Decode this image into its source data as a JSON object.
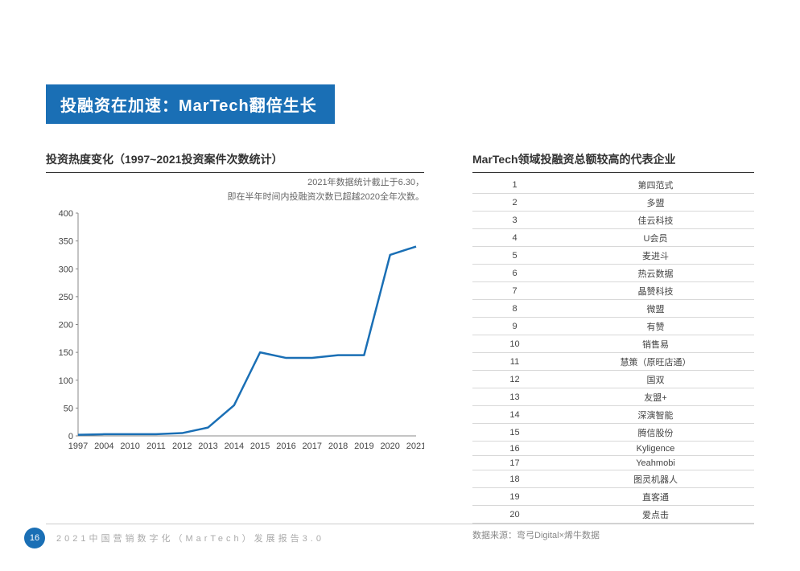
{
  "header": {
    "title": "投融资在加速：MarTech翻倍生长"
  },
  "chart_section": {
    "title": "投资热度变化（1997~2021投资案件次数统计）",
    "note_line1": "2021年数据统计截止于6.30，",
    "note_line2": "即在半年时间内投融资次数已超越2020全年次数。"
  },
  "chart": {
    "type": "line",
    "line_color": "#1a6fb5",
    "line_width": 2.5,
    "axis_color": "#888888",
    "label_color": "#444444",
    "label_fontsize": 11,
    "background": "#ffffff",
    "ylim": [
      0,
      400
    ],
    "ytick_step": 50,
    "categories": [
      "1997",
      "2004",
      "2010",
      "2011",
      "2012",
      "2013",
      "2014",
      "2015",
      "2016",
      "2017",
      "2018",
      "2019",
      "2020",
      "2021"
    ],
    "values": [
      2,
      3,
      3,
      3,
      5,
      15,
      55,
      150,
      140,
      140,
      145,
      145,
      325,
      340
    ]
  },
  "table_section": {
    "title": "MarTech领域投融资总额较高的代表企业",
    "rows": [
      {
        "rank": "1",
        "name": "第四范式"
      },
      {
        "rank": "2",
        "name": "多盟"
      },
      {
        "rank": "3",
        "name": "佳云科技"
      },
      {
        "rank": "4",
        "name": "U会员"
      },
      {
        "rank": "5",
        "name": "麦进斗"
      },
      {
        "rank": "6",
        "name": "热云数据"
      },
      {
        "rank": "7",
        "name": "晶赞科技"
      },
      {
        "rank": "8",
        "name": "微盟"
      },
      {
        "rank": "9",
        "name": "有赞"
      },
      {
        "rank": "10",
        "name": "销售易"
      },
      {
        "rank": "11",
        "name": "慧策（原旺店通）"
      },
      {
        "rank": "12",
        "name": "国双"
      },
      {
        "rank": "13",
        "name": "友盟+"
      },
      {
        "rank": "14",
        "name": "深演智能"
      },
      {
        "rank": "15",
        "name": "腾信股份"
      },
      {
        "rank": "16",
        "name": "Kyligence"
      },
      {
        "rank": "17",
        "name": "Yeahmobi"
      },
      {
        "rank": "18",
        "name": "图灵机器人"
      },
      {
        "rank": "19",
        "name": "直客通"
      },
      {
        "rank": "20",
        "name": "爱点击"
      }
    ],
    "source": "数据来源：弯弓Digital×烯牛数据"
  },
  "footer": {
    "page": "16",
    "text": "2021中国营销数字化（MarTech）发展报告3.0"
  }
}
